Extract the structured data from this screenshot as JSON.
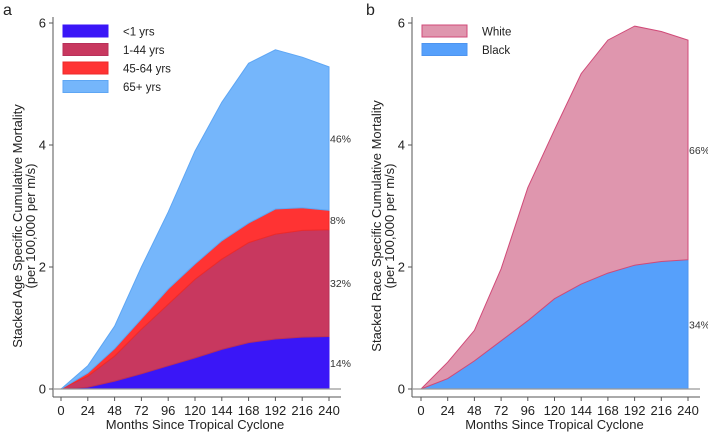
{
  "chart_data": [
    {
      "panel_label": "a",
      "type": "area",
      "stacked": true,
      "xlabel": "Months Since Tropical Cyclone",
      "ylabel_lines": [
        "Stacked Age Specific Cumulative Mortality",
        "(per 100,000 per m/s)"
      ],
      "x": [
        0,
        24,
        48,
        72,
        96,
        120,
        144,
        168,
        192,
        216,
        240
      ],
      "xticks": [
        0,
        24,
        48,
        72,
        96,
        120,
        144,
        168,
        192,
        216,
        240
      ],
      "yticks": [
        0,
        2,
        4,
        6
      ],
      "ylim": [
        0,
        6
      ],
      "xlim": [
        0,
        240
      ],
      "legend_position": "top-left",
      "series": [
        {
          "name": "<1 yrs",
          "color": "#3a16f7",
          "edge": "#3a16f7",
          "share_label": "14%",
          "values": [
            0,
            0.03,
            0.13,
            0.25,
            0.38,
            0.51,
            0.65,
            0.76,
            0.82,
            0.85,
            0.86
          ]
        },
        {
          "name": "1-44 yrs",
          "color": "#c8385f",
          "edge": "#b8305a",
          "share_label": "32%",
          "values": [
            0,
            0.18,
            0.41,
            0.73,
            1.01,
            1.29,
            1.48,
            1.64,
            1.72,
            1.75,
            1.75
          ]
        },
        {
          "name": "45-64 yrs",
          "color": "#ff3333",
          "edge": "#ee2a2a",
          "share_label": "8%",
          "values": [
            0,
            0.05,
            0.12,
            0.17,
            0.25,
            0.25,
            0.3,
            0.32,
            0.41,
            0.37,
            0.32
          ]
        },
        {
          "name": "65+ yrs",
          "color": "#75b6fb",
          "edge": "#5ea6f4",
          "share_label": "46%",
          "values": [
            0,
            0.12,
            0.37,
            0.85,
            1.26,
            1.85,
            2.27,
            2.62,
            2.61,
            2.47,
            2.35
          ]
        }
      ]
    },
    {
      "panel_label": "b",
      "type": "area",
      "stacked": true,
      "xlabel": "Months Since Tropical Cyclone",
      "ylabel_lines": [
        "Stacked Race Specific Cumulative Mortality",
        "(per 100,000 per m/s)"
      ],
      "x": [
        0,
        24,
        48,
        72,
        96,
        120,
        144,
        168,
        192,
        216,
        240
      ],
      "xticks": [
        0,
        24,
        48,
        72,
        96,
        120,
        144,
        168,
        192,
        216,
        240
      ],
      "yticks": [
        0,
        2,
        4,
        6
      ],
      "ylim": [
        0,
        6
      ],
      "xlim": [
        0,
        240
      ],
      "legend_position": "top-left",
      "legend_order": [
        "White",
        "Black"
      ],
      "series": [
        {
          "name": "Black",
          "color": "#56a0fb",
          "edge": "#4d94ef",
          "share_label": "34%",
          "values": [
            0,
            0.17,
            0.46,
            0.79,
            1.12,
            1.48,
            1.72,
            1.9,
            2.03,
            2.09,
            2.12
          ]
        },
        {
          "name": "White",
          "color": "#df96ae",
          "edge": "#d04a78",
          "share_label": "66%",
          "values": [
            0,
            0.27,
            0.5,
            1.18,
            2.18,
            2.77,
            3.45,
            3.82,
            3.92,
            3.77,
            3.6
          ]
        }
      ]
    }
  ]
}
